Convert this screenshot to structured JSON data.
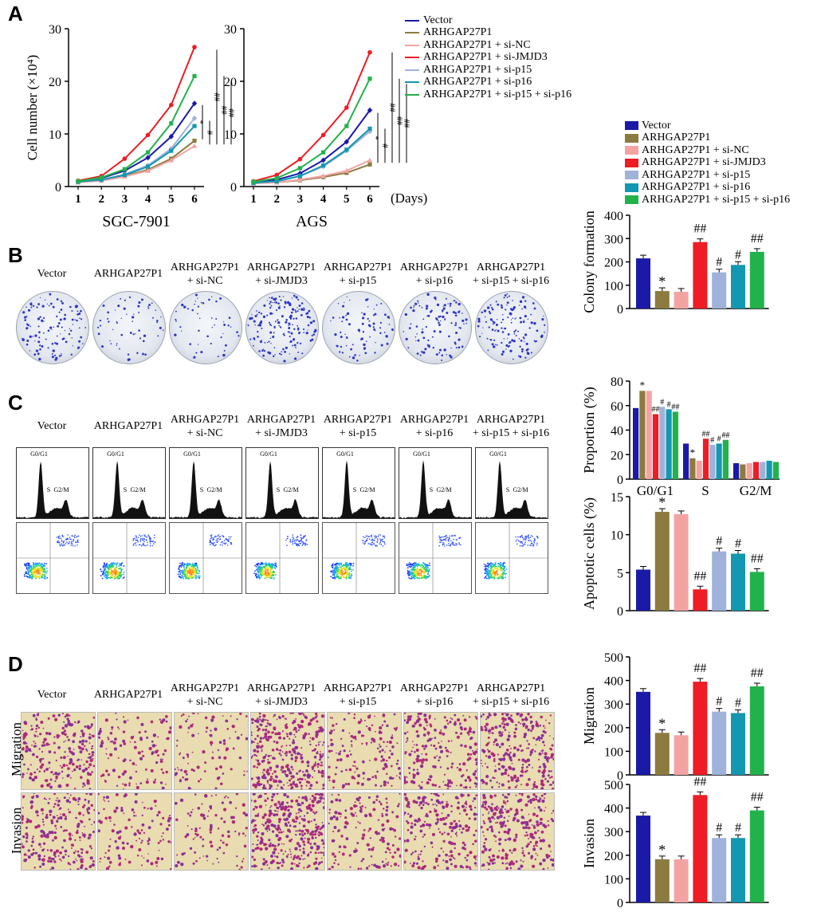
{
  "panels": {
    "a": "A",
    "b": "B",
    "c": "C",
    "d": "D"
  },
  "colors": {
    "vector": "#1a1aa6",
    "arhgap": "#8c7b3e",
    "sinc": "#f4a3a3",
    "sijmjd3": "#ee1c24",
    "sip15": "#9fb2da",
    "sip16": "#1497b0",
    "sip15p16": "#22b24c"
  },
  "groups": [
    "Vector",
    "ARHGAP27P1",
    "ARHGAP27P1 + si-NC",
    "ARHGAP27P1 + si-JMJD3",
    "ARHGAP27P1 + si-p15",
    "ARHGAP27P1 + si-p16",
    "ARHGAP27P1 + si-p15 + si-p16"
  ],
  "group_labels": [
    {
      "l1": "Vector",
      "l2": ""
    },
    {
      "l1": "ARHGAP27P1",
      "l2": ""
    },
    {
      "l1": "ARHGAP27P1",
      "l2": "+ si-NC"
    },
    {
      "l1": "ARHGAP27P1",
      "l2": "+ si-JMJD3"
    },
    {
      "l1": "ARHGAP27P1",
      "l2": "+ si-p15"
    },
    {
      "l1": "ARHGAP27P1",
      "l2": "+ si-p16"
    },
    {
      "l1": "ARHGAP27P1",
      "l2": "+ si-p15 + si-p16"
    }
  ],
  "row_labels": {
    "migration": "Migration",
    "invasion": "Invasion"
  },
  "hist_gates": {
    "g0g1": "G0/G1",
    "s": "S",
    "g2m": "G2/M"
  },
  "chart_data": [
    {
      "id": "growth-sgc",
      "type": "line",
      "title": "SGC-7901",
      "ylabel": "Cell number (×10⁴)",
      "x": [
        1,
        2,
        3,
        4,
        5,
        6
      ],
      "ylim": [
        0,
        30
      ],
      "yticks": [
        0,
        10,
        20,
        30
      ],
      "series": [
        {
          "name": "Vector",
          "values": [
            1.0,
            1.6,
            3.0,
            5.5,
            9.5,
            15.8
          ]
        },
        {
          "name": "ARHGAP27P1",
          "values": [
            0.8,
            1.2,
            2.0,
            3.2,
            5.3,
            8.7
          ]
        },
        {
          "name": "ARHGAP27P1 + si-NC",
          "values": [
            0.8,
            1.1,
            1.9,
            3.0,
            5.0,
            7.7
          ]
        },
        {
          "name": "ARHGAP27P1 + si-JMJD3",
          "values": [
            1.1,
            2.0,
            5.3,
            9.8,
            15.5,
            26.5
          ]
        },
        {
          "name": "ARHGAP27P1 + si-p15",
          "values": [
            0.9,
            1.3,
            2.3,
            4.0,
            7.2,
            13.0
          ]
        },
        {
          "name": "ARHGAP27P1 + si-p16",
          "values": [
            0.9,
            1.3,
            2.2,
            3.8,
            6.8,
            11.5
          ]
        },
        {
          "name": "ARHGAP27P1 + si-p15 + si-p16",
          "values": [
            1.0,
            1.7,
            3.3,
            6.5,
            12.0,
            21.0
          ]
        }
      ],
      "annotations": [
        "*",
        "#",
        "##",
        "##",
        "##"
      ]
    },
    {
      "id": "growth-ags",
      "type": "line",
      "title": "AGS",
      "xlabel": "(Days)",
      "x": [
        1,
        2,
        3,
        4,
        5,
        6
      ],
      "ylim": [
        0,
        30
      ],
      "yticks": [
        0,
        10,
        20,
        30
      ],
      "series": [
        {
          "name": "Vector",
          "values": [
            0.8,
            1.3,
            2.5,
            5.0,
            8.5,
            14.5
          ]
        },
        {
          "name": "ARHGAP27P1",
          "values": [
            0.6,
            0.8,
            1.2,
            1.8,
            2.6,
            4.2
          ]
        },
        {
          "name": "ARHGAP27P1 + si-NC",
          "values": [
            0.6,
            0.8,
            1.3,
            2.0,
            3.0,
            5.0
          ]
        },
        {
          "name": "ARHGAP27P1 + si-JMJD3",
          "values": [
            1.0,
            2.2,
            5.2,
            9.8,
            15.0,
            25.5
          ]
        },
        {
          "name": "ARHGAP27P1 + si-p15",
          "values": [
            0.7,
            1.0,
            2.0,
            3.8,
            6.8,
            10.5
          ]
        },
        {
          "name": "ARHGAP27P1 + si-p16",
          "values": [
            0.7,
            1.0,
            2.0,
            4.0,
            7.0,
            11.0
          ]
        },
        {
          "name": "ARHGAP27P1 + si-p15 + si-p16",
          "values": [
            0.9,
            1.6,
            3.5,
            6.5,
            11.5,
            20.5
          ]
        }
      ],
      "annotations": [
        "*",
        "#",
        "##",
        "##",
        "##"
      ]
    },
    {
      "id": "colony",
      "type": "bar",
      "ylabel": "Colony formation",
      "ylim": [
        0,
        400
      ],
      "yticks": [
        0,
        100,
        200,
        300,
        400
      ],
      "values": [
        215,
        75,
        72,
        285,
        155,
        187,
        243
      ],
      "marks": [
        "",
        "*",
        "",
        "##",
        "#",
        "#",
        "##"
      ]
    },
    {
      "id": "cellcycle",
      "type": "bar",
      "ylabel": "Proportion (%)",
      "ylim": [
        0,
        80
      ],
      "yticks": [
        0,
        20,
        40,
        60,
        80
      ],
      "categories": [
        "G0/G1",
        "S",
        "G2/M"
      ],
      "series_values": [
        [
          58,
          72,
          72,
          53,
          59,
          57,
          55
        ],
        [
          29,
          17,
          15,
          33,
          28,
          29,
          32
        ],
        [
          13,
          12,
          13,
          14,
          14,
          15,
          14
        ]
      ],
      "marks": [
        [
          "",
          "*",
          "",
          "##",
          "#",
          "#",
          "##"
        ],
        [
          "",
          "*",
          "",
          "##",
          "#",
          "#",
          "##"
        ],
        [
          "",
          "",
          "",
          "",
          "",
          "",
          ""
        ]
      ]
    },
    {
      "id": "apoptosis",
      "type": "bar",
      "ylabel": "Apoptotic cells (%)",
      "ylim": [
        0,
        15
      ],
      "yticks": [
        0,
        5,
        10,
        15
      ],
      "values": [
        5.4,
        13.0,
        12.7,
        2.8,
        7.8,
        7.5,
        5.1
      ],
      "marks": [
        "",
        "*",
        "",
        "##",
        "#",
        "#",
        "##"
      ]
    },
    {
      "id": "migration",
      "type": "bar",
      "ylabel": "Migration",
      "ylim": [
        0,
        500
      ],
      "yticks": [
        0,
        100,
        200,
        300,
        400,
        500
      ],
      "values": [
        352,
        178,
        168,
        395,
        268,
        262,
        375
      ],
      "marks": [
        "",
        "*",
        "",
        "##",
        "#",
        "#",
        "##"
      ]
    },
    {
      "id": "invasion",
      "type": "bar",
      "ylabel": "Invasion",
      "ylim": [
        0,
        500
      ],
      "yticks": [
        0,
        100,
        200,
        300,
        400,
        500
      ],
      "values": [
        368,
        183,
        183,
        455,
        273,
        273,
        390
      ],
      "marks": [
        "",
        "*",
        "",
        "##",
        "#",
        "#",
        "##"
      ]
    }
  ]
}
